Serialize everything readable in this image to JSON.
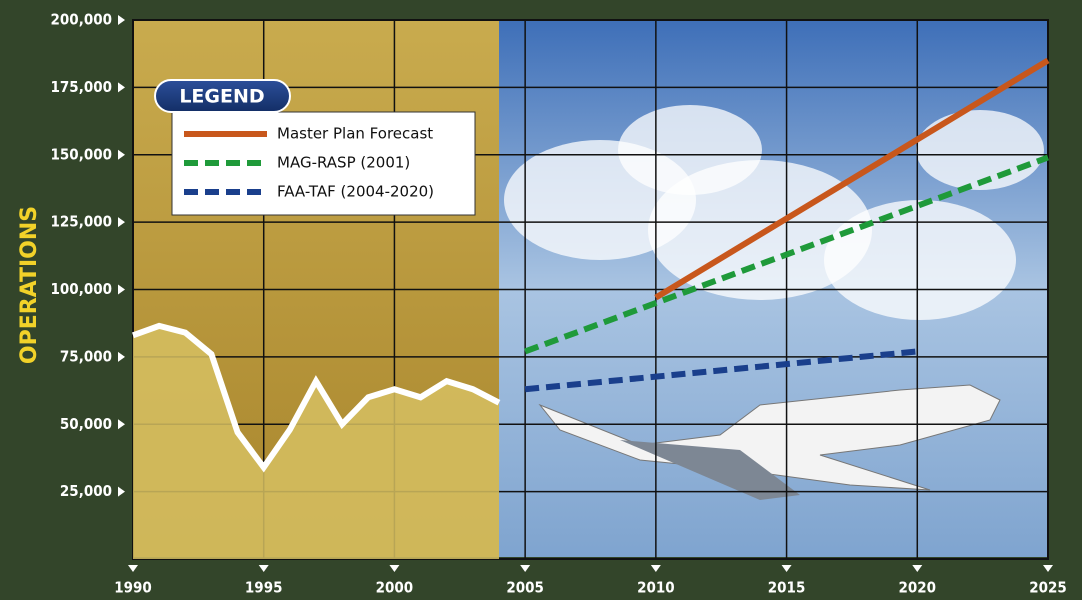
{
  "chart_data": {
    "type": "line",
    "y_label": "OPERATIONS",
    "legend_title": "LEGEND",
    "legend": "top-left",
    "grid": true,
    "xlim": [
      1990,
      2025
    ],
    "xticks": [
      1990,
      1995,
      2000,
      2005,
      2010,
      2015,
      2020,
      2025
    ],
    "ylim": [
      0,
      200000
    ],
    "yticks": [
      {
        "value": 25000,
        "label": "25,000"
      },
      {
        "value": 50000,
        "label": "50,000"
      },
      {
        "value": 75000,
        "label": "75,000"
      },
      {
        "value": 100000,
        "label": "100,000"
      },
      {
        "value": 125000,
        "label": "125,000"
      },
      {
        "value": 150000,
        "label": "150,000"
      },
      {
        "value": 175000,
        "label": "175,000"
      },
      {
        "value": 200000,
        "label": "200,000"
      }
    ],
    "series": [
      {
        "color": "#ffffff",
        "fill": "#d6c062",
        "x": [
          1990,
          1991,
          1992,
          1993,
          1994,
          1995,
          1996,
          1997,
          1998,
          1999,
          2000,
          2001,
          2002,
          2003,
          2004
        ],
        "values": [
          83000,
          86500,
          84000,
          76000,
          47000,
          34000,
          48000,
          66000,
          50000,
          60000,
          63000,
          60000,
          66000,
          63000,
          58000
        ]
      },
      {
        "name": "Master Plan Forecast",
        "color": "#c8571c",
        "dashed": false,
        "x": [
          2010,
          2025
        ],
        "values": [
          97000,
          185000
        ]
      },
      {
        "name": "MAG-RASP (2001)",
        "color": "#1f9a3a",
        "dashed": true,
        "x": [
          2005,
          2025
        ],
        "values": [
          77000,
          149000
        ]
      },
      {
        "name": "FAA-TAF (2004-2020)",
        "color": "#1a3f8c",
        "dashed": true,
        "x": [
          2005,
          2020
        ],
        "values": [
          63000,
          77000
        ]
      }
    ]
  }
}
